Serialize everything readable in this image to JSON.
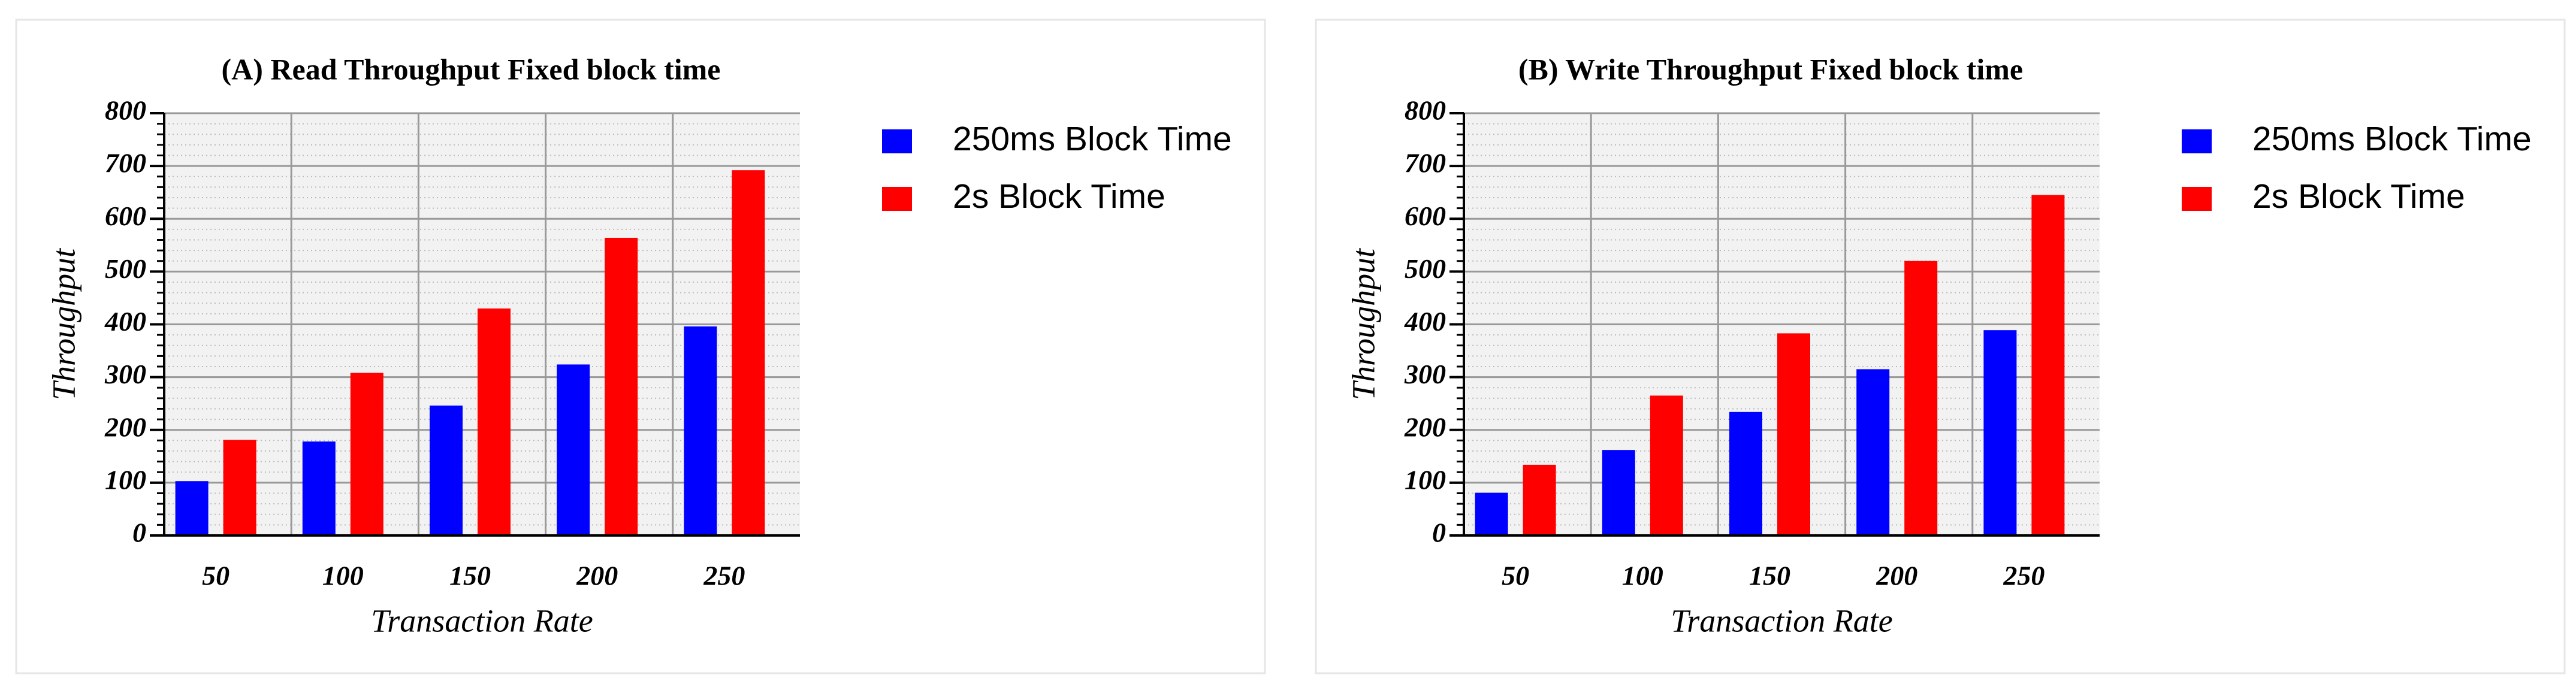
{
  "chart_data": [
    {
      "type": "bar",
      "title": "(A) Read Throughput Fixed block time",
      "x_label": "Transaction Rate",
      "y_label": "Throughput",
      "categories": [
        "50",
        "100",
        "150",
        "200",
        "250"
      ],
      "series": [
        {
          "name": "250ms Block Time",
          "color": "#0000ff",
          "values": [
            103,
            178,
            246,
            324,
            396
          ]
        },
        {
          "name": "2s Block Time",
          "color": "#ff0000",
          "values": [
            181,
            308,
            430,
            564,
            692
          ]
        }
      ],
      "ylim": [
        0,
        800
      ],
      "yticks": [
        0,
        100,
        200,
        300,
        400,
        500,
        600,
        700,
        800
      ],
      "grid": true,
      "legend": "right"
    },
    {
      "type": "bar",
      "title": "(B) Write Throughput Fixed block time",
      "x_label": "Transaction Rate",
      "y_label": "Throughput",
      "categories": [
        "50",
        "100",
        "150",
        "200",
        "250"
      ],
      "series": [
        {
          "name": "250ms Block Time",
          "color": "#0000ff",
          "values": [
            81,
            162,
            234,
            315,
            389
          ]
        },
        {
          "name": "2s Block Time",
          "color": "#ff0000",
          "values": [
            134,
            265,
            383,
            520,
            645
          ]
        }
      ],
      "ylim": [
        0,
        800
      ],
      "yticks": [
        0,
        100,
        200,
        300,
        400,
        500,
        600,
        700,
        800
      ],
      "grid": true,
      "legend": "right"
    }
  ]
}
